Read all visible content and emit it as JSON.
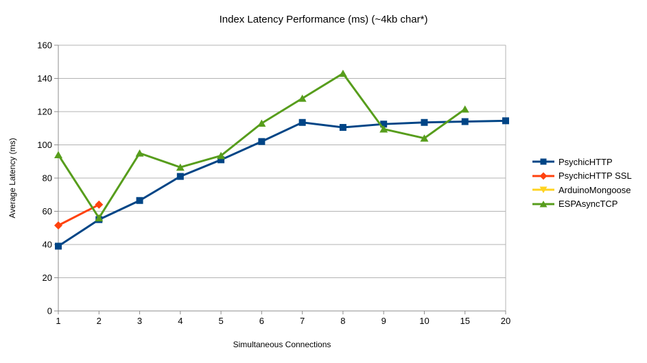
{
  "chart_data": {
    "type": "line",
    "title": "Index Latency Performance (ms) (~4kb char*)",
    "xlabel": "Simultaneous Connections",
    "ylabel": "Average Latency (ms)",
    "categories": [
      "1",
      "2",
      "3",
      "4",
      "5",
      "6",
      "7",
      "8",
      "9",
      "10",
      "15",
      "20"
    ],
    "ylim": [
      0,
      160
    ],
    "ytick_step": 20,
    "grid": "horizontal",
    "legend_position": "right",
    "series": [
      {
        "name": "PsychicHTTP",
        "color": "#004586",
        "marker": "square",
        "values": [
          39,
          55,
          66.5,
          81,
          91,
          102,
          113.5,
          110.5,
          112.5,
          113.5,
          114,
          114.5
        ]
      },
      {
        "name": "PsychicHTTP SSL",
        "color": "#FF420E",
        "marker": "diamond",
        "values": [
          51.5,
          64,
          null,
          null,
          null,
          null,
          null,
          null,
          null,
          null,
          null,
          null
        ]
      },
      {
        "name": "ArduinoMongoose",
        "color": "#FFD320",
        "marker": "triangle-down",
        "values": [
          null,
          null,
          null,
          null,
          null,
          null,
          null,
          null,
          null,
          null,
          null,
          null
        ]
      },
      {
        "name": "ESPAsyncTCP",
        "color": "#579D1C",
        "marker": "triangle-up",
        "values": [
          94,
          56,
          95,
          86.5,
          93.5,
          113,
          128,
          143,
          109.5,
          104,
          121.5,
          null
        ]
      }
    ],
    "colors": {
      "grid": "#b3b3b3",
      "axis": "#8c8c8c",
      "text": "#000000",
      "background": "#ffffff"
    }
  }
}
